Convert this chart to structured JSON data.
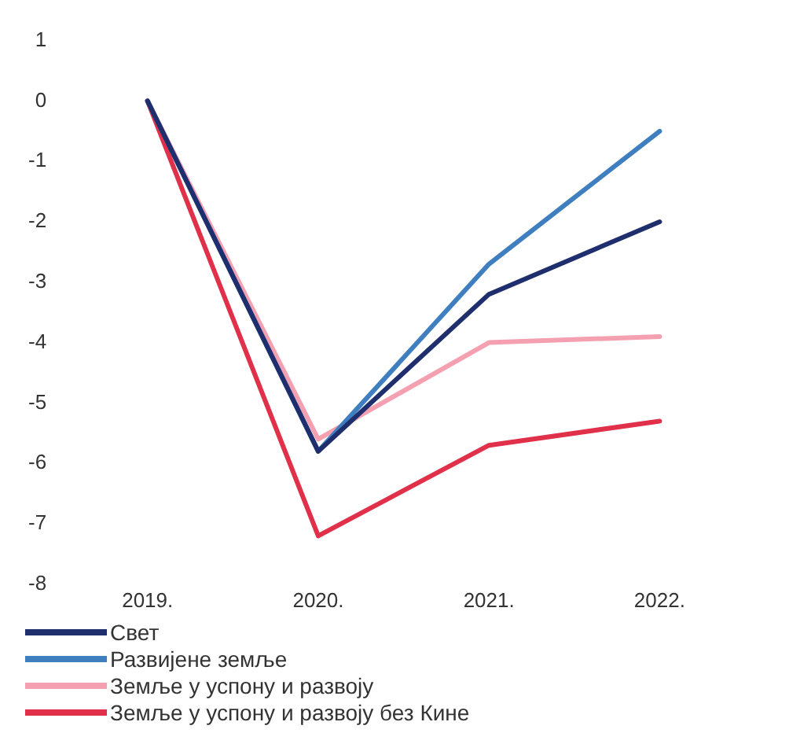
{
  "chart_data": {
    "type": "line",
    "categories": [
      "2019.",
      "2020.",
      "2021.",
      "2022."
    ],
    "series": [
      {
        "name": "Свет",
        "color": "#1f2f6e",
        "values": [
          0,
          -5.8,
          -3.2,
          -2.0
        ]
      },
      {
        "name": "Развијене земље",
        "color": "#3f7fc0",
        "values": [
          0,
          -5.8,
          -2.7,
          -0.5
        ]
      },
      {
        "name": "Земље у успону и развоју",
        "color": "#f4a0b0",
        "values": [
          0,
          -5.6,
          -4.0,
          -3.9
        ]
      },
      {
        "name": "Земље у успону и развоју без Кине",
        "color": "#e0304a",
        "values": [
          0,
          -7.2,
          -5.7,
          -5.3
        ]
      }
    ],
    "ylim": [
      -8,
      1
    ],
    "yticks": [
      -8,
      -7,
      -6,
      -5,
      -4,
      -3,
      -2,
      -1,
      0,
      1
    ],
    "grid": false,
    "legend": "bottom",
    "marker": "none",
    "line_style": "solid"
  }
}
